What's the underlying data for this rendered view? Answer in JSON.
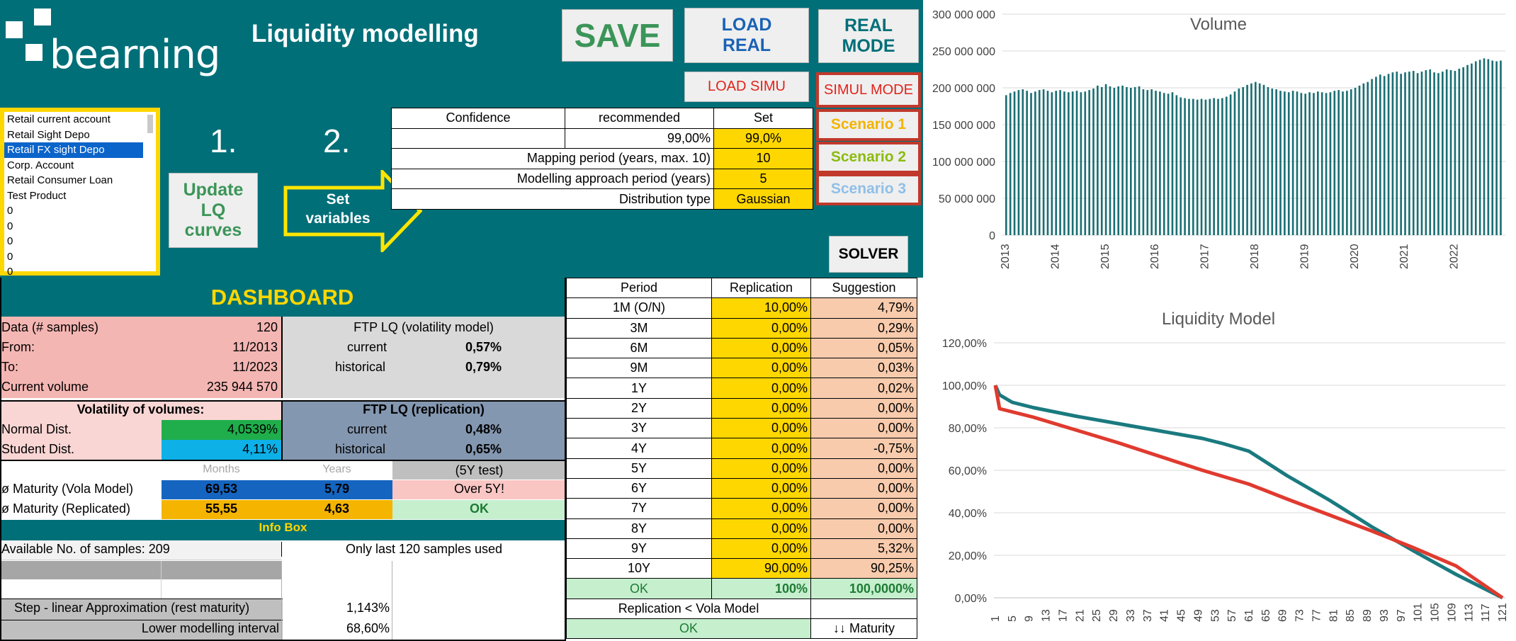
{
  "header": {
    "logo_text": "bearning",
    "title": "Liquidity modelling",
    "buttons": {
      "save": "SAVE",
      "load_real": "LOAD\nREAL",
      "real_mode": "REAL\nMODE",
      "load_simu": "LOAD SIMU",
      "simul_mode": "SIMUL MODE",
      "scenario1": "Scenario 1",
      "scenario2": "Scenario 2",
      "scenario3": "Scenario 3",
      "solver": "SOLVER",
      "update": "Update\nLQ\ncurves",
      "set_variables": "Set\nvariables"
    },
    "step1": "1.",
    "step2": "2."
  },
  "colors": {
    "teal": "#006f78",
    "yellow": "#ffd700",
    "save_green": "#3b9558",
    "red": "#e2231a",
    "series_volume": "#1a6f73",
    "series_vola": "#1a7a7f",
    "series_replication": "#e03a2f"
  },
  "products": {
    "items": [
      "Retail current account",
      "Retail Sight Depo",
      "Retail FX sight Depo",
      "Corp. Account",
      "Retail Consumer Loan",
      "Test Product",
      "0",
      "0",
      "0",
      "0",
      "0"
    ],
    "selected": "Retail FX sight Depo"
  },
  "config": {
    "headers": [
      "Confidence",
      "recommended",
      "Set"
    ],
    "rows": [
      {
        "label": "",
        "recommended": "99,00%",
        "set": "99,0%"
      },
      {
        "label": "Mapping period (years, max. 10)",
        "recommended": "",
        "set": "10"
      },
      {
        "label": "Modelling approach period (years)",
        "recommended": "",
        "set": "5"
      },
      {
        "label": "Distribution type",
        "recommended": "",
        "set": "Gaussian"
      }
    ]
  },
  "dashboard": {
    "title": "DASHBOARD",
    "data_samples_label": "Data (# samples)",
    "data_samples": "120",
    "from_label": "From:",
    "from": "11/2013",
    "to_label": "To:",
    "to": "11/2023",
    "current_volume_label": "Current volume",
    "current_volume": "235 944 570",
    "ftp_vola_title": "FTP LQ (volatility model)",
    "ftp_vola_current_label": "current",
    "ftp_vola_current": "0,57%",
    "ftp_vola_hist_label": "historical",
    "ftp_vola_hist": "0,79%",
    "volatility_title": "Volatility of volumes:",
    "normal_label": "Normal Dist.",
    "normal": "4,0539%",
    "student_label": "Student Dist.",
    "student": "4,11%",
    "ftp_repl_title": "FTP LQ (replication)",
    "ftp_repl_current_label": "current",
    "ftp_repl_current": "0,48%",
    "ftp_repl_hist_label": "historical",
    "ftp_repl_hist": "0,65%",
    "months_label": "Months",
    "years_label": "Years",
    "test_label": "(5Y test)",
    "mat_vola_label": "ø Maturity (Vola Model)",
    "mat_vola_months": "69,53",
    "mat_vola_years": "5,79",
    "mat_vola_test": "Over 5Y!",
    "mat_repl_label": "ø Maturity (Replicated)",
    "mat_repl_months": "55,55",
    "mat_repl_years": "4,63",
    "mat_repl_test": "OK",
    "info_title": "Info Box",
    "available_label": "Available No. of samples: 209",
    "only_last": "Only last 120 samples used",
    "step_label": "Step - linear Approximation (rest maturity)",
    "step": "1,143%",
    "lower_label": "Lower modelling interval",
    "lower": "68,60%"
  },
  "periods": {
    "headers": [
      "Period",
      "Replication",
      "Suggestion"
    ],
    "rows": [
      {
        "p": "1M (O/N)",
        "r": "10,00%",
        "s": "4,79%"
      },
      {
        "p": "3M",
        "r": "0,00%",
        "s": "0,29%"
      },
      {
        "p": "6M",
        "r": "0,00%",
        "s": "0,05%"
      },
      {
        "p": "9M",
        "r": "0,00%",
        "s": "0,03%"
      },
      {
        "p": "1Y",
        "r": "0,00%",
        "s": "0,02%"
      },
      {
        "p": "2Y",
        "r": "0,00%",
        "s": "0,00%"
      },
      {
        "p": "3Y",
        "r": "0,00%",
        "s": "0,00%"
      },
      {
        "p": "4Y",
        "r": "0,00%",
        "s": "-0,75%"
      },
      {
        "p": "5Y",
        "r": "0,00%",
        "s": "0,00%"
      },
      {
        "p": "6Y",
        "r": "0,00%",
        "s": "0,00%"
      },
      {
        "p": "7Y",
        "r": "0,00%",
        "s": "0,00%"
      },
      {
        "p": "8Y",
        "r": "0,00%",
        "s": "0,00%"
      },
      {
        "p": "9Y",
        "r": "0,00%",
        "s": "5,32%"
      },
      {
        "p": "10Y",
        "r": "90,00%",
        "s": "90,25%"
      }
    ],
    "total_ok": "OK",
    "total_repl": "100%",
    "total_sugg": "100,0000%",
    "check_label": "Replication < Vola Model",
    "check_ok": "OK",
    "maturity_label": "↓↓ Maturity"
  },
  "chart_data": [
    {
      "type": "bar",
      "title": "Volume",
      "ylim": [
        0,
        300000000
      ],
      "y_ticks": [
        "0",
        "50 000 000",
        "100 000 000",
        "150 000 000",
        "200 000 000",
        "250 000 000",
        "300 000 000"
      ],
      "x_ticks": [
        "2013",
        "2014",
        "2015",
        "2016",
        "2017",
        "2018",
        "2019",
        "2020",
        "2021",
        "2022"
      ],
      "grid": true,
      "values": [
        190000000,
        193000000,
        195000000,
        197000000,
        198000000,
        196000000,
        193000000,
        195000000,
        197000000,
        198000000,
        196000000,
        194000000,
        196000000,
        197000000,
        195000000,
        194000000,
        195000000,
        196000000,
        194000000,
        195000000,
        197000000,
        199000000,
        203000000,
        201000000,
        205000000,
        202000000,
        200000000,
        202000000,
        203000000,
        201000000,
        200000000,
        201000000,
        202000000,
        198000000,
        197000000,
        198000000,
        196000000,
        195000000,
        193000000,
        192000000,
        194000000,
        190000000,
        187000000,
        186000000,
        185000000,
        185000000,
        184000000,
        185000000,
        184000000,
        185000000,
        186000000,
        185000000,
        186000000,
        188000000,
        191000000,
        195000000,
        199000000,
        201000000,
        204000000,
        206000000,
        208000000,
        206000000,
        204000000,
        201000000,
        199000000,
        198000000,
        196000000,
        195000000,
        194000000,
        196000000,
        195000000,
        193000000,
        192000000,
        194000000,
        193000000,
        195000000,
        194000000,
        193000000,
        194000000,
        196000000,
        197000000,
        195000000,
        196000000,
        198000000,
        200000000,
        203000000,
        206000000,
        208000000,
        212000000,
        215000000,
        218000000,
        216000000,
        219000000,
        221000000,
        222000000,
        219000000,
        221000000,
        222000000,
        223000000,
        220000000,
        222000000,
        224000000,
        225000000,
        221000000,
        220000000,
        222000000,
        225000000,
        224000000,
        223000000,
        226000000,
        228000000,
        231000000,
        233000000,
        236000000,
        238000000,
        240000000,
        239000000,
        237000000,
        236000000,
        237000000
      ]
    },
    {
      "type": "line",
      "title": "Liquidity Model",
      "ylim": [
        0,
        1.2
      ],
      "y_ticks": [
        "0,00%",
        "20,00%",
        "40,00%",
        "60,00%",
        "80,00%",
        "100,00%",
        "120,00%"
      ],
      "x_ticks": [
        "1",
        "5",
        "9",
        "13",
        "17",
        "21",
        "25",
        "29",
        "33",
        "37",
        "41",
        "45",
        "49",
        "53",
        "57",
        "61",
        "65",
        "69",
        "73",
        "77",
        "81",
        "85",
        "89",
        "93",
        "97",
        "101",
        "105",
        "109",
        "113",
        "117",
        "121"
      ],
      "grid": true,
      "series": [
        {
          "points": [
            [
              1,
              1.0
            ],
            [
              2,
              0.955
            ],
            [
              5,
              0.92
            ],
            [
              10,
              0.895
            ],
            [
              20,
              0.855
            ],
            [
              30,
              0.82
            ],
            [
              40,
              0.785
            ],
            [
              50,
              0.75
            ],
            [
              55,
              0.725
            ],
            [
              61,
              0.69
            ],
            [
              70,
              0.575
            ],
            [
              80,
              0.46
            ],
            [
              90,
              0.335
            ],
            [
              100,
              0.22
            ],
            [
              110,
              0.11
            ],
            [
              117,
              0.04
            ],
            [
              121,
              0.0
            ]
          ]
        },
        {
          "points": [
            [
              1,
              1.0
            ],
            [
              2,
              0.89
            ],
            [
              10,
              0.85
            ],
            [
              20,
              0.79
            ],
            [
              30,
              0.73
            ],
            [
              40,
              0.665
            ],
            [
              50,
              0.6
            ],
            [
              61,
              0.535
            ],
            [
              70,
              0.465
            ],
            [
              80,
              0.39
            ],
            [
              90,
              0.315
            ],
            [
              100,
              0.235
            ],
            [
              110,
              0.15
            ],
            [
              121,
              0.0
            ]
          ]
        }
      ]
    }
  ]
}
